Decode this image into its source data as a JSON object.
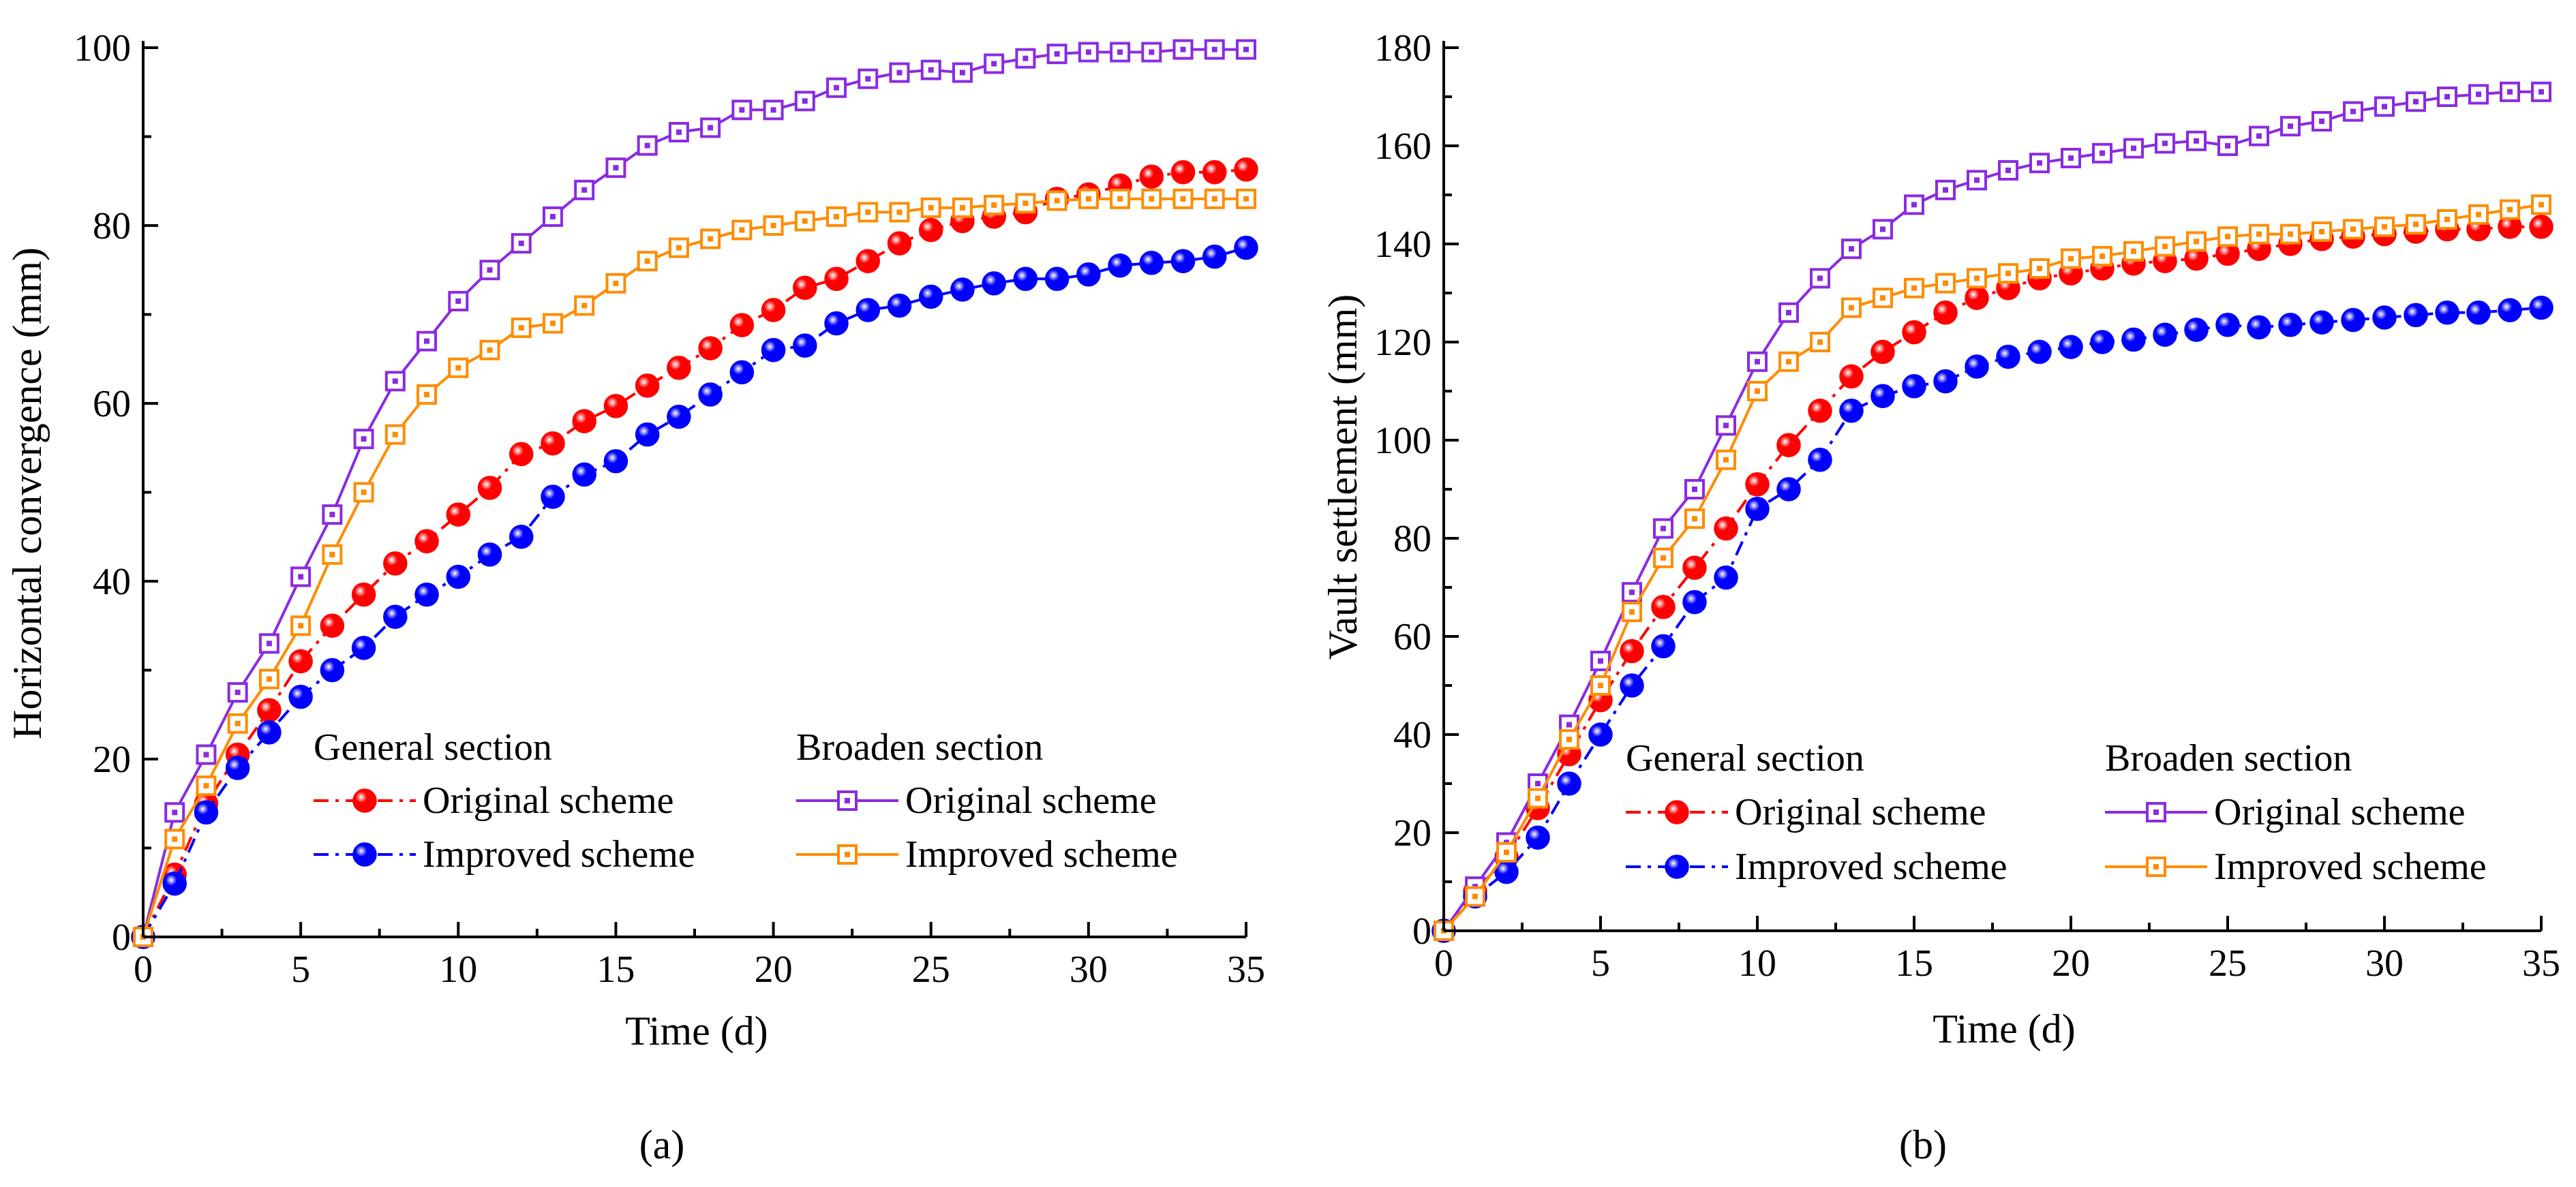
{
  "colors": {
    "general_original": "#ff0000",
    "general_improved": "#0000ff",
    "broaden_original": "#8a2be2",
    "broaden_improved": "#ff8c00"
  },
  "legend": {
    "group_general": "General section",
    "group_broaden": "Broaden section",
    "label_original": "Original  scheme",
    "label_improved": "Improved scheme"
  },
  "chart_data": [
    {
      "type": "line",
      "panel_label": "(a)",
      "xlabel": "Time (d)",
      "ylabel": "Horizontal convergence (mm)",
      "xlim": [
        0,
        35
      ],
      "ylim": [
        0,
        100
      ],
      "xticks": [
        0,
        5,
        10,
        15,
        20,
        25,
        30,
        35
      ],
      "yticks": [
        0,
        20,
        40,
        60,
        80,
        100
      ],
      "legend_position": "bottom-center",
      "x": [
        0,
        1,
        2,
        3,
        4,
        5,
        6,
        7,
        8,
        9,
        10,
        11,
        12,
        13,
        14,
        15,
        16,
        17,
        18,
        19,
        20,
        21,
        22,
        23,
        24,
        25,
        26,
        27,
        28,
        29,
        30,
        31,
        32,
        33,
        34,
        35
      ],
      "series": [
        {
          "group": "General section",
          "name": "Original  scheme",
          "color": "#ff0000",
          "style": "dash-dot",
          "marker": "circle",
          "values": [
            0,
            7,
            15,
            20.5,
            25.5,
            31,
            35,
            38.5,
            42,
            44.5,
            47.5,
            50.5,
            54.3,
            55.5,
            58,
            59.7,
            62,
            64,
            66.2,
            68.8,
            70.5,
            73,
            74,
            76,
            78,
            79.5,
            80.5,
            81,
            81.5,
            83,
            83.5,
            84.5,
            85.5,
            86,
            86,
            86.3
          ]
        },
        {
          "group": "General section",
          "name": "Improved scheme",
          "color": "#0000ff",
          "style": "dash-dot",
          "marker": "circle",
          "values": [
            0,
            6,
            14,
            19,
            23,
            27,
            30,
            32.5,
            36,
            38.5,
            40.5,
            43,
            45,
            49.5,
            52,
            53.5,
            56.5,
            58.5,
            61,
            63.5,
            66,
            66.5,
            69,
            70.5,
            71,
            72,
            72.8,
            73.5,
            74,
            74,
            74.5,
            75.5,
            75.8,
            76,
            76.5,
            77.5
          ]
        },
        {
          "group": "Broaden section",
          "name": "Original  scheme",
          "color": "#8a2be2",
          "style": "solid",
          "marker": "square",
          "values": [
            0,
            14,
            20.5,
            27.5,
            33,
            40.5,
            47.5,
            56,
            62.5,
            67,
            71.5,
            75,
            78,
            81,
            84,
            86.5,
            89,
            90.5,
            91,
            93,
            93,
            94,
            95.5,
            96.5,
            97.2,
            97.5,
            97.2,
            98.2,
            98.8,
            99.3,
            99.5,
            99.5,
            99.5,
            99.8,
            99.8,
            99.8
          ]
        },
        {
          "group": "Broaden section",
          "name": "Improved scheme",
          "color": "#ff8c00",
          "style": "solid",
          "marker": "square",
          "values": [
            0,
            11,
            17,
            24,
            29,
            35,
            43,
            50,
            56.5,
            61,
            64,
            66,
            68.5,
            69,
            71,
            73.5,
            76,
            77.5,
            78.5,
            79.5,
            80,
            80.5,
            81,
            81.5,
            81.5,
            82,
            82,
            82.3,
            82.5,
            82.8,
            83,
            83,
            83,
            83,
            83,
            83
          ]
        }
      ]
    },
    {
      "type": "line",
      "panel_label": "(b)",
      "xlabel": "Time (d)",
      "ylabel": "Vault settlement (mm)",
      "xlim": [
        0,
        35
      ],
      "ylim": [
        0,
        180
      ],
      "xticks": [
        0,
        5,
        10,
        15,
        20,
        25,
        30,
        35
      ],
      "yticks": [
        0,
        20,
        40,
        60,
        80,
        100,
        120,
        140,
        160,
        180
      ],
      "legend_position": "bottom-center",
      "x": [
        0,
        1,
        2,
        3,
        4,
        5,
        6,
        7,
        8,
        9,
        10,
        11,
        12,
        13,
        14,
        15,
        16,
        17,
        18,
        19,
        20,
        21,
        22,
        23,
        24,
        25,
        26,
        27,
        28,
        29,
        30,
        31,
        32,
        33,
        34,
        35
      ],
      "series": [
        {
          "group": "General section",
          "name": "Original  scheme",
          "color": "#ff0000",
          "style": "dash-dot",
          "marker": "circle",
          "values": [
            0,
            8,
            15,
            25,
            36,
            47,
            57,
            66,
            74,
            82,
            91,
            99,
            106,
            113,
            118,
            122,
            126,
            129,
            131,
            133,
            134,
            135,
            136,
            136.5,
            137,
            138,
            139,
            140,
            141,
            141.5,
            142,
            142.5,
            143,
            143,
            143.5,
            143.5
          ]
        },
        {
          "group": "General section",
          "name": "Improved scheme",
          "color": "#0000ff",
          "style": "dash-dot",
          "marker": "circle",
          "values": [
            0,
            7,
            12,
            19,
            30,
            40,
            50,
            58,
            67,
            72,
            86,
            90,
            96,
            106,
            109,
            111,
            112,
            115,
            117,
            118,
            119,
            120,
            120.5,
            121.5,
            122.5,
            123.5,
            123,
            123.5,
            124,
            124.5,
            125,
            125.5,
            126,
            126,
            126.5,
            127
          ]
        },
        {
          "group": "Broaden section",
          "name": "Original  scheme",
          "color": "#8a2be2",
          "style": "solid",
          "marker": "square",
          "values": [
            0,
            9,
            18,
            30,
            42,
            55,
            69,
            82,
            90,
            103,
            116,
            126,
            133,
            139,
            143,
            148,
            151,
            153,
            155,
            156.5,
            157.5,
            158.5,
            159.5,
            160.5,
            161,
            160,
            162,
            164,
            165,
            167,
            168,
            169,
            170,
            170.5,
            171,
            171
          ]
        },
        {
          "group": "Broaden section",
          "name": "Improved scheme",
          "color": "#ff8c00",
          "style": "solid",
          "marker": "square",
          "values": [
            0,
            7,
            16,
            27,
            39,
            50,
            65,
            76,
            84,
            96,
            110,
            116,
            120,
            127,
            129,
            131,
            132,
            133,
            134,
            135,
            137,
            137.5,
            138.5,
            139.5,
            140.5,
            141.5,
            142,
            142,
            142.5,
            143,
            143.5,
            144,
            145,
            146,
            147,
            148
          ]
        }
      ]
    }
  ]
}
